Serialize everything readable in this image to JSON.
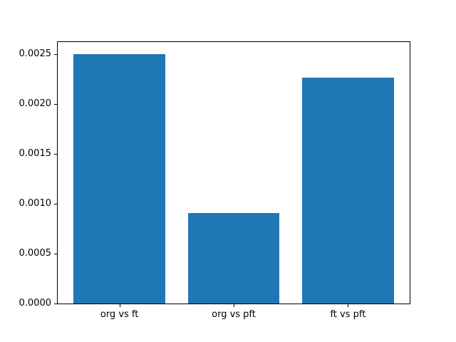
{
  "figure": {
    "background": "#ffffff",
    "axis_color": "#000000"
  },
  "chart_data": {
    "type": "bar",
    "title": "",
    "xlabel": "",
    "ylabel": "",
    "categories": [
      "org vs ft",
      "org vs pft",
      "ft vs pft"
    ],
    "values": [
      0.0025,
      0.00091,
      0.00227
    ],
    "bar_color": "#1f77b4",
    "bar_width": 0.8,
    "xlim": [
      -0.54,
      2.54
    ],
    "ylim": [
      0,
      0.002625
    ],
    "yticks": [
      0.0,
      0.0005,
      0.001,
      0.0015,
      0.002,
      0.0025
    ],
    "ytick_labels": [
      "0.0000",
      "0.0005",
      "0.0010",
      "0.0015",
      "0.0020",
      "0.0025"
    ],
    "grid": false,
    "legend": false
  }
}
